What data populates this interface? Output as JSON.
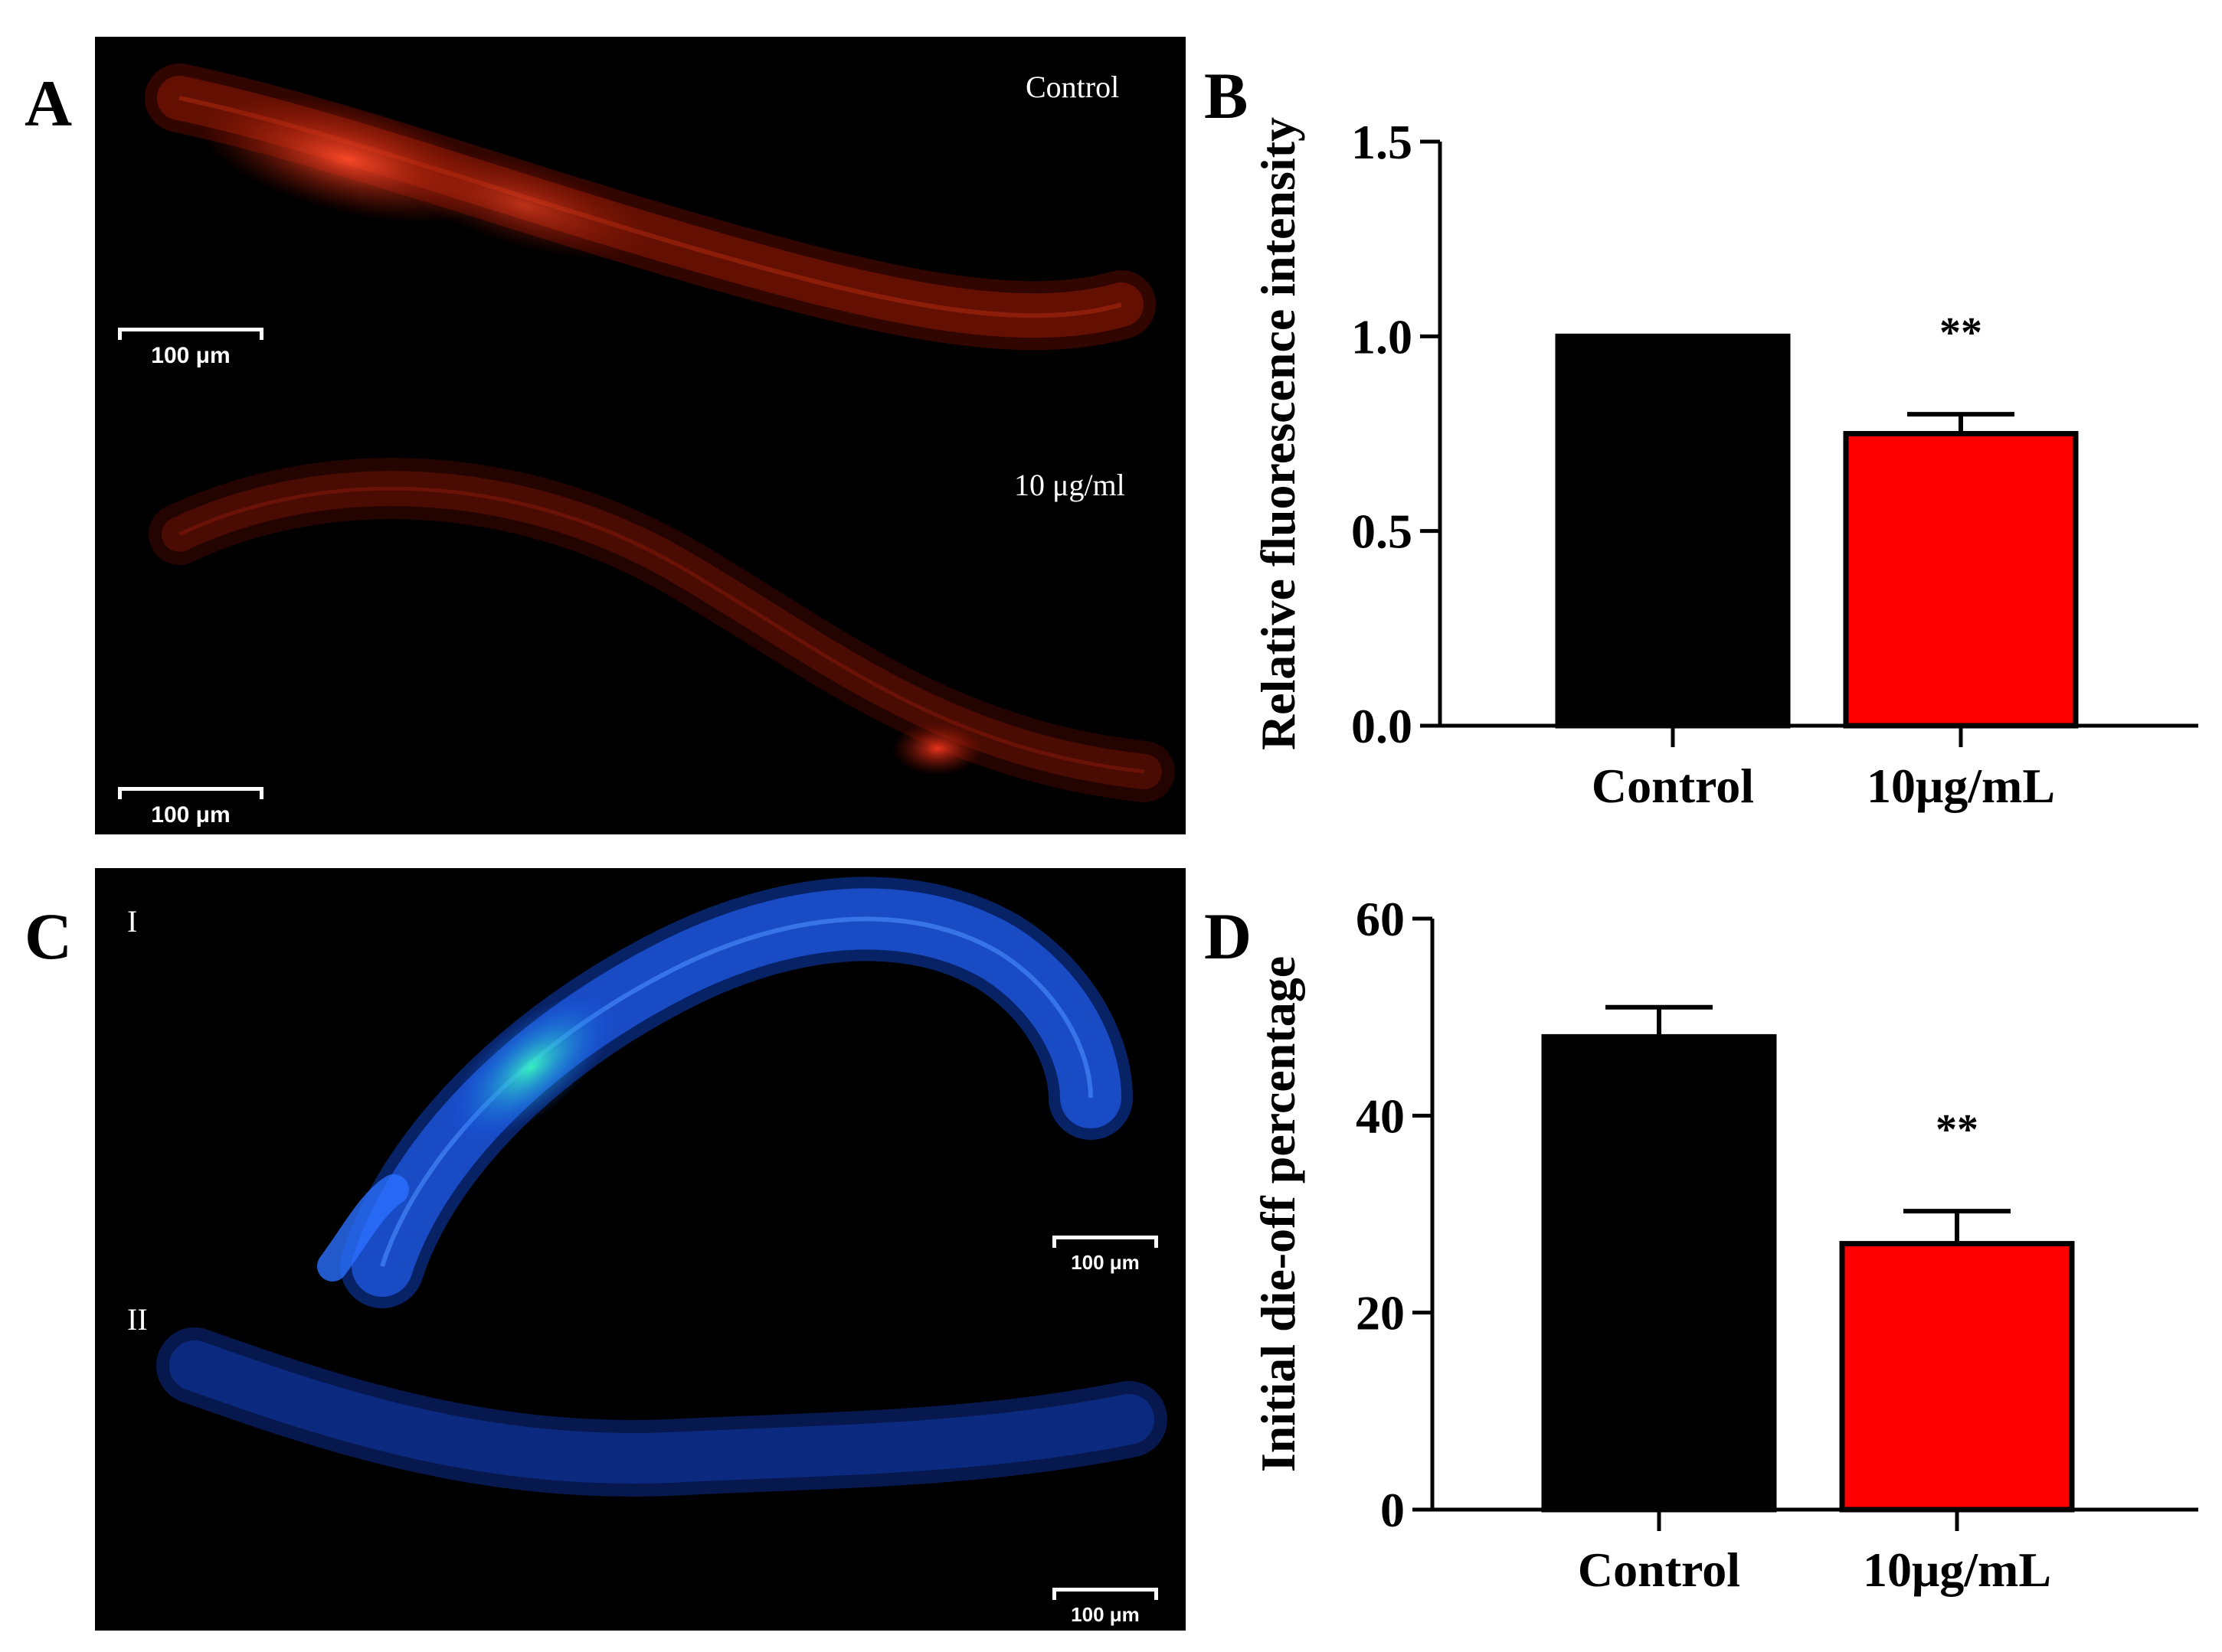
{
  "panels": {
    "a": {
      "letter": "A",
      "label_top": "Control",
      "label_bottom": "10 μg/ml",
      "scale_top": "100 μm",
      "scale_bottom": "100 μm"
    },
    "b": {
      "letter": "B"
    },
    "c": {
      "letter": "C",
      "label_top": "I",
      "label_bottom": "II",
      "scale_top": "100 μm",
      "scale_bottom": "100 μm"
    },
    "d": {
      "letter": "D"
    }
  },
  "colors": {
    "control_bar": "#000000",
    "treated_bar": "#ff0000",
    "axis": "#000000"
  },
  "chart_data": [
    {
      "type": "bar",
      "panel": "B",
      "categories": [
        "Control",
        "10μg/mL"
      ],
      "values": [
        1.0,
        0.75
      ],
      "errors": [
        0,
        0.05
      ],
      "annotations": [
        "",
        "**"
      ],
      "title": "",
      "xlabel": "",
      "ylabel": "Relative fluorescence intensity",
      "ylim": [
        0,
        1.5
      ],
      "yticks": [
        "0.0",
        "0.5",
        "1.0",
        "1.5"
      ],
      "ytick_values": [
        0,
        0.5,
        1.0,
        1.5
      ]
    },
    {
      "type": "bar",
      "panel": "D",
      "categories": [
        "Control",
        "10μg/mL"
      ],
      "values": [
        48,
        27
      ],
      "errors": [
        3,
        3.3
      ],
      "annotations": [
        "",
        "**"
      ],
      "title": "",
      "xlabel": "",
      "ylabel": "Initial die-off percentage",
      "ylim": [
        0,
        60
      ],
      "yticks": [
        "0",
        "20",
        "40",
        "60"
      ],
      "ytick_values": [
        0,
        20,
        40,
        60
      ]
    }
  ]
}
